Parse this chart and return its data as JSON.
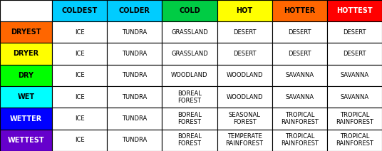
{
  "col_headers": [
    "COLDEST",
    "COLDER",
    "COLD",
    "HOT",
    "HOTTER",
    "HOTTEST"
  ],
  "col_header_colors": [
    "#00CCFF",
    "#00CCFF",
    "#00CC44",
    "#FFFF00",
    "#FF6600",
    "#FF0000"
  ],
  "col_header_text_colors": [
    "#000000",
    "#000000",
    "#000000",
    "#000000",
    "#000000",
    "#FFFFFF"
  ],
  "row_headers": [
    "DRYEST",
    "DRYER",
    "DRY",
    "WET",
    "WETTER",
    "WETTEST"
  ],
  "row_header_colors": [
    "#FF6600",
    "#FFFF00",
    "#00FF00",
    "#00FFFF",
    "#0000FF",
    "#6600CC"
  ],
  "row_header_text_colors": [
    "#000000",
    "#000000",
    "#000000",
    "#000000",
    "#FFFFFF",
    "#FFFFFF"
  ],
  "cells": [
    [
      "ICE",
      "TUNDRA",
      "GRASSLAND",
      "DESERT",
      "DESERT",
      "DESERT"
    ],
    [
      "ICE",
      "TUNDRA",
      "GRASSLAND",
      "DESERT",
      "DESERT",
      "DESERT"
    ],
    [
      "ICE",
      "TUNDRA",
      "WOODLAND",
      "WOODLAND",
      "SAVANNA",
      "SAVANNA"
    ],
    [
      "ICE",
      "TUNDRA",
      "BOREAL\nFOREST",
      "WOODLAND",
      "SAVANNA",
      "SAVANNA"
    ],
    [
      "ICE",
      "TUNDRA",
      "BOREAL\nFOREST",
      "SEASONAL\nFOREST",
      "TROPICAL\nRAINFOREST",
      "TROPICAL\nRAINFOREST"
    ],
    [
      "ICE",
      "TUNDRA",
      "BOREAL\nFOREST",
      "TEMPERATE\nRAINFOREST",
      "TROPICAL\nRAINFOREST",
      "TROPICAL\nRAINFOREST"
    ]
  ],
  "cell_bg_color": "#FFFFFF",
  "cell_text_color": "#000000",
  "border_color": "#000000",
  "n_cols": 6,
  "n_rows": 6,
  "font_size_header": 7.0,
  "font_size_cells": 6.0
}
